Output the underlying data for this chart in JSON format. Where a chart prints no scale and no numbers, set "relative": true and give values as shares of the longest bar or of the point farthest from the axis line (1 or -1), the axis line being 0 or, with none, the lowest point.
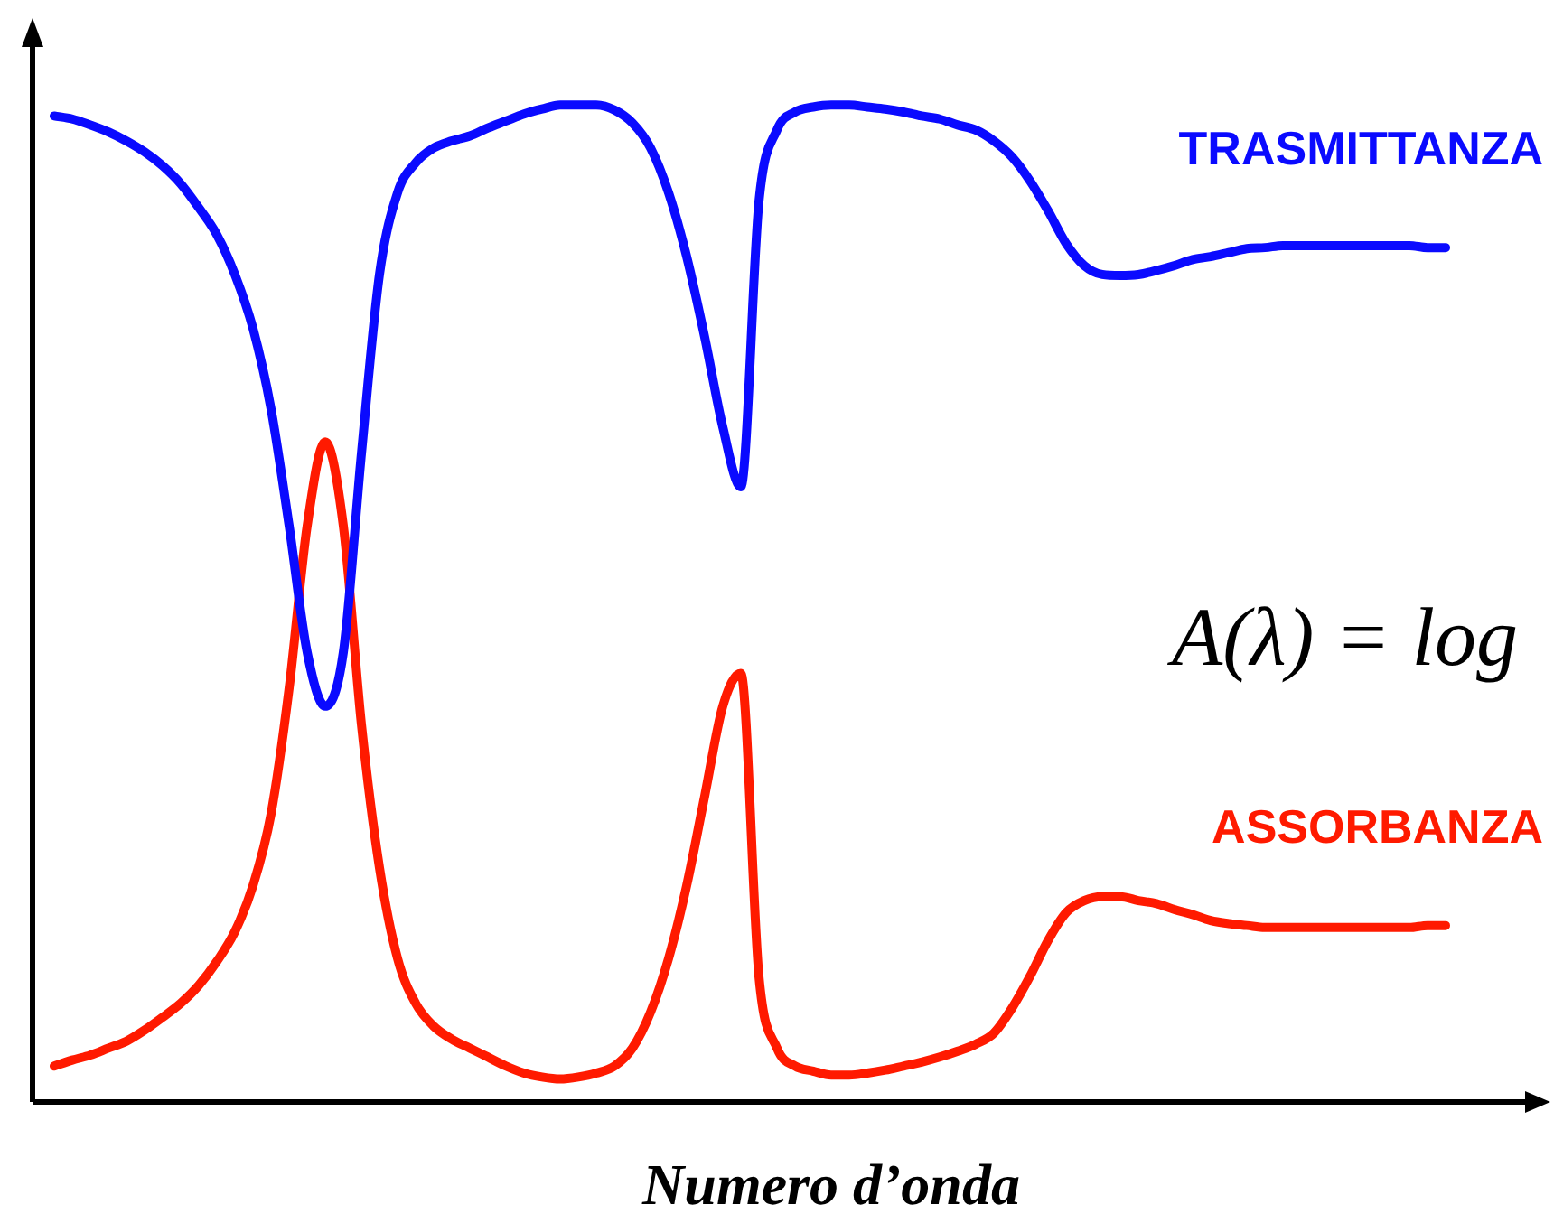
{
  "chart_data": {
    "type": "line",
    "relative": true,
    "xlabel": "Numero d’onda",
    "annotations": [
      "A(λ) = log"
    ],
    "legend": false,
    "tick_labels": false,
    "marker": "none",
    "line_style": "solid",
    "categories": [
      null,
      null,
      null,
      null,
      null,
      null,
      null,
      null,
      null,
      null,
      null,
      null,
      null,
      null,
      null,
      null,
      null,
      null,
      null,
      null,
      null,
      null,
      null,
      null,
      null,
      null,
      null,
      null,
      null,
      null,
      null,
      null,
      null,
      null,
      null,
      null,
      null,
      null,
      null,
      null,
      null,
      null,
      null,
      null,
      null,
      null,
      null,
      null,
      null,
      null,
      null,
      null,
      null,
      null,
      null,
      null,
      null,
      null,
      null,
      null,
      null,
      null,
      null,
      null,
      null,
      null,
      null,
      null,
      null,
      null,
      null,
      null,
      null,
      null,
      null,
      null,
      null,
      null
    ],
    "series": [
      {
        "name": "TRASMITTANZA",
        "color": "#0a0aff",
        "values": [
          0.989,
          0.986,
          0.98,
          0.973,
          0.964,
          0.953,
          0.939,
          0.921,
          0.897,
          0.87,
          0.83,
          0.776,
          0.695,
          0.578,
          0.451,
          0.397,
          0.451,
          0.65,
          0.83,
          0.912,
          0.942,
          0.957,
          0.964,
          0.969,
          0.977,
          0.984,
          0.991,
          0.996,
          1,
          1,
          1,
          0.995,
          0.982,
          0.957,
          0.912,
          0.848,
          0.767,
          0.677,
          0.617,
          0.903,
          0.975,
          0.993,
          0.998,
          1,
          1,
          0.998,
          0.996,
          0.993,
          0.989,
          0.986,
          0.98,
          0.975,
          0.964,
          0.948,
          0.924,
          0.894,
          0.861,
          0.839,
          0.83,
          0.829,
          0.83,
          0.834,
          0.839,
          0.845,
          0.848,
          0.852,
          0.856,
          0.857,
          0.859,
          0.859,
          0.859,
          0.859,
          0.859,
          0.859,
          0.859,
          0.859,
          0.857,
          0.857
        ]
      },
      {
        "name": "ASSORBANZA",
        "color": "#ff1a00",
        "values": [
          0.036,
          0.042,
          0.047,
          0.054,
          0.061,
          0.072,
          0.085,
          0.099,
          0.117,
          0.141,
          0.171,
          0.217,
          0.289,
          0.415,
          0.578,
          0.662,
          0.578,
          0.379,
          0.235,
          0.144,
          0.099,
          0.076,
          0.063,
          0.054,
          0.045,
          0.036,
          0.029,
          0.025,
          0.023,
          0.025,
          0.029,
          0.036,
          0.054,
          0.09,
          0.144,
          0.217,
          0.307,
          0.397,
          0.43,
          0.126,
          0.054,
          0.036,
          0.031,
          0.027,
          0.027,
          0.029,
          0.032,
          0.036,
          0.04,
          0.045,
          0.051,
          0.058,
          0.069,
          0.094,
          0.126,
          0.162,
          0.19,
          0.202,
          0.206,
          0.206,
          0.202,
          0.199,
          0.193,
          0.188,
          0.182,
          0.179,
          0.177,
          0.175,
          0.175,
          0.175,
          0.175,
          0.175,
          0.175,
          0.175,
          0.175,
          0.175,
          0.177,
          0.177
        ]
      }
    ]
  }
}
